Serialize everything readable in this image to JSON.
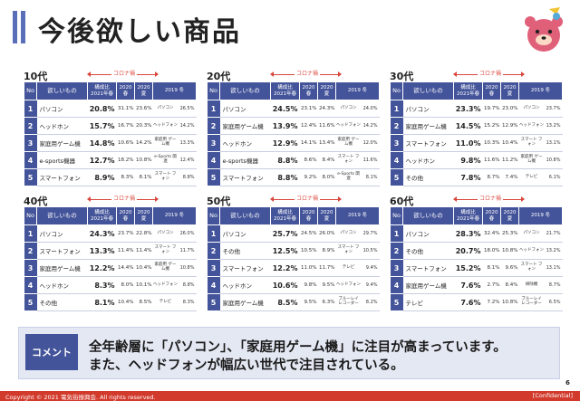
{
  "page": {
    "title": "今後欲しい商品",
    "page_number": "6",
    "copyright": "Copyright © 2021 電気街振興会. All rights reserved.",
    "confidential": "[Confidential]"
  },
  "corona_label": "コロナ禍",
  "headers": {
    "no": "No",
    "item": "欲しいもの",
    "share": "構成比 2021年春",
    "y2020s": "2020 春",
    "y2020m": "2020 夏",
    "y2019": "2019 冬"
  },
  "blocks": [
    {
      "age": "10代",
      "rows": [
        {
          "no": "1",
          "item": "パソコン",
          "share": "20.8%",
          "s": "31.1%",
          "m": "23.6%",
          "rank19": "パソコン",
          "p19": "26.5%"
        },
        {
          "no": "2",
          "item": "ヘッドホン",
          "share": "15.7%",
          "s": "16.7%",
          "m": "20.3%",
          "rank19": "ヘッドフォン",
          "p19": "14.2%"
        },
        {
          "no": "3",
          "item": "家庭用ゲーム機",
          "share": "14.8%",
          "s": "10.6%",
          "m": "14.2%",
          "rank19": "家庭用 ゲーム機",
          "p19": "13.3%"
        },
        {
          "no": "4",
          "item": "e-sports機器",
          "share": "12.7%",
          "s": "18.2%",
          "m": "10.8%",
          "rank19": "e-Sports 関連",
          "p19": "12.4%"
        },
        {
          "no": "5",
          "item": "スマートフォン",
          "share": "8.9%",
          "s": "8.3%",
          "m": "8.1%",
          "rank19": "スマート フォン",
          "p19": "8.8%"
        }
      ]
    },
    {
      "age": "20代",
      "rows": [
        {
          "no": "1",
          "item": "パソコン",
          "share": "24.5%",
          "s": "23.1%",
          "m": "24.3%",
          "rank19": "パソコン",
          "p19": "24.0%"
        },
        {
          "no": "2",
          "item": "家庭用ゲーム機",
          "share": "13.9%",
          "s": "12.4%",
          "m": "11.6%",
          "rank19": "ヘッドフォン",
          "p19": "14.2%"
        },
        {
          "no": "3",
          "item": "ヘッドホン",
          "share": "12.9%",
          "s": "14.1%",
          "m": "13.4%",
          "rank19": "家庭用 ゲーム機",
          "p19": "12.0%"
        },
        {
          "no": "4",
          "item": "e-sports機器",
          "share": "8.8%",
          "s": "8.6%",
          "m": "8.4%",
          "rank19": "スマート フォン",
          "p19": "11.6%"
        },
        {
          "no": "5",
          "item": "スマートフォン",
          "share": "8.8%",
          "s": "9.2%",
          "m": "8.0%",
          "rank19": "e-Sports 関連",
          "p19": "8.1%"
        }
      ]
    },
    {
      "age": "30代",
      "rows": [
        {
          "no": "1",
          "item": "パソコン",
          "share": "23.3%",
          "s": "19.7%",
          "m": "23.0%",
          "rank19": "パソコン",
          "p19": "23.7%"
        },
        {
          "no": "2",
          "item": "家庭用ゲーム機",
          "share": "14.5%",
          "s": "15.2%",
          "m": "12.9%",
          "rank19": "ヘッドフォン",
          "p19": "13.2%"
        },
        {
          "no": "3",
          "item": "スマートフォン",
          "share": "11.0%",
          "s": "10.3%",
          "m": "10.4%",
          "rank19": "スマート フォン",
          "p19": "13.1%"
        },
        {
          "no": "4",
          "item": "ヘッドホン",
          "share": "9.8%",
          "s": "11.6%",
          "m": "11.2%",
          "rank19": "家庭用 ゲーム機",
          "p19": "10.8%"
        },
        {
          "no": "5",
          "item": "その他",
          "share": "7.8%",
          "s": "8.7%",
          "m": "7.4%",
          "rank19": "テレビ",
          "p19": "6.1%"
        }
      ]
    },
    {
      "age": "40代",
      "rows": [
        {
          "no": "1",
          "item": "パソコン",
          "share": "24.3%",
          "s": "23.7%",
          "m": "22.8%",
          "rank19": "パソコン",
          "p19": "26.0%"
        },
        {
          "no": "2",
          "item": "スマートフォン",
          "share": "13.3%",
          "s": "11.4%",
          "m": "11.4%",
          "rank19": "スマート フォン",
          "p19": "11.7%"
        },
        {
          "no": "3",
          "item": "家庭用ゲーム機",
          "share": "12.2%",
          "s": "14.4%",
          "m": "10.4%",
          "rank19": "家庭用 ゲーム機",
          "p19": "10.8%"
        },
        {
          "no": "4",
          "item": "ヘッドホン",
          "share": "8.3%",
          "s": "8.0%",
          "m": "10.1%",
          "rank19": "ヘッドフォン",
          "p19": "8.8%"
        },
        {
          "no": "5",
          "item": "その他",
          "share": "8.1%",
          "s": "10.4%",
          "m": "8.5%",
          "rank19": "テレビ",
          "p19": "8.3%"
        }
      ]
    },
    {
      "age": "50代",
      "rows": [
        {
          "no": "1",
          "item": "パソコン",
          "share": "25.7%",
          "s": "24.5%",
          "m": "26.0%",
          "rank19": "パソコン",
          "p19": "29.7%"
        },
        {
          "no": "2",
          "item": "その他",
          "share": "12.5%",
          "s": "10.5%",
          "m": "8.9%",
          "rank19": "スマート フォン",
          "p19": "10.5%"
        },
        {
          "no": "3",
          "item": "スマートフォン",
          "share": "12.2%",
          "s": "11.0%",
          "m": "11.7%",
          "rank19": "テレビ",
          "p19": "9.4%"
        },
        {
          "no": "4",
          "item": "ヘッドホン",
          "share": "10.6%",
          "s": "9.8%",
          "m": "9.5%",
          "rank19": "ヘッドフォン",
          "p19": "9.4%"
        },
        {
          "no": "5",
          "item": "家庭用ゲーム機",
          "share": "8.5%",
          "s": "9.5%",
          "m": "6.3%",
          "rank19": "ブルーレイ レコーダー",
          "p19": "8.2%"
        }
      ]
    },
    {
      "age": "60代",
      "rows": [
        {
          "no": "1",
          "item": "パソコン",
          "share": "28.3%",
          "s": "32.4%",
          "m": "25.3%",
          "rank19": "パソコン",
          "p19": "21.7%"
        },
        {
          "no": "2",
          "item": "その他",
          "share": "20.7%",
          "s": "18.0%",
          "m": "10.8%",
          "rank19": "ヘッドフォン",
          "p19": "13.2%"
        },
        {
          "no": "3",
          "item": "スマートフォン",
          "share": "15.2%",
          "s": "8.1%",
          "m": "9.6%",
          "rank19": "スマート フォン",
          "p19": "13.1%"
        },
        {
          "no": "4",
          "item": "家庭用ゲーム機",
          "share": "7.6%",
          "s": "2.7%",
          "m": "8.4%",
          "rank19": "掃除機",
          "p19": "8.7%"
        },
        {
          "no": "5",
          "item": "テレビ",
          "share": "7.6%",
          "s": "7.2%",
          "m": "10.8%",
          "rank19": "ブルーレイ レコーダー",
          "p19": "6.5%"
        }
      ]
    }
  ],
  "comment": {
    "tag": "コメント",
    "line1": "全年齢層に「パソコン」、「家庭用ゲーム機」に注目が高まっています。",
    "line2": "また、ヘッドフォンが幅広い世代で注目されている。"
  },
  "colors": {
    "header": "#44549a",
    "accent": "#d9453a",
    "footer": "#d23a2c",
    "comment_bg": "#e4e8f3"
  }
}
